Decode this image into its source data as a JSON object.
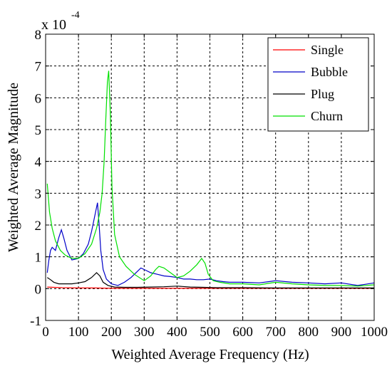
{
  "chart_data": {
    "type": "line",
    "title": "",
    "xlabel": "Weighted Average Frequency (Hz)",
    "ylabel": "Weighted Average Magnitude",
    "y_multiplier_base": "x 10",
    "y_multiplier_exponent": "-4",
    "xlim": [
      0,
      1000
    ],
    "ylim": [
      -1,
      8
    ],
    "x_ticks": [
      0,
      100,
      200,
      300,
      400,
      500,
      600,
      700,
      800,
      900,
      1000
    ],
    "x_tick_labels": [
      "0",
      "100",
      "200",
      "300",
      "400",
      "500",
      "600",
      "700",
      "800",
      "900",
      "1000"
    ],
    "y_ticks": [
      -1,
      0,
      1,
      2,
      3,
      4,
      5,
      6,
      7,
      8
    ],
    "y_tick_labels": [
      "-1",
      "0",
      "1",
      "2",
      "3",
      "4",
      "5",
      "6",
      "7",
      "8"
    ],
    "grid": true,
    "legend_position": "top-right",
    "series": [
      {
        "name": "Single",
        "color": "#ff0000",
        "x": [
          5,
          50,
          100,
          150,
          200,
          300,
          400,
          500,
          600,
          700,
          800,
          900,
          1000
        ],
        "y": [
          0.05,
          0.03,
          0.02,
          0.02,
          0.01,
          0.01,
          0.01,
          0.01,
          0.01,
          0.01,
          0.01,
          0.01,
          0.01
        ]
      },
      {
        "name": "Bubble",
        "color": "#0000c8",
        "x": [
          5,
          10,
          15,
          20,
          30,
          40,
          48,
          55,
          65,
          80,
          100,
          115,
          130,
          140,
          150,
          158,
          163,
          168,
          175,
          185,
          200,
          220,
          240,
          260,
          280,
          290,
          300,
          320,
          340,
          360,
          380,
          400,
          420,
          440,
          460,
          480,
          500,
          520,
          540,
          560,
          580,
          600,
          650,
          700,
          750,
          800,
          850,
          900,
          950,
          1000
        ],
        "y": [
          0.5,
          0.9,
          1.2,
          1.3,
          1.2,
          1.6,
          1.85,
          1.6,
          1.2,
          0.9,
          0.95,
          1.1,
          1.4,
          1.8,
          2.3,
          2.7,
          2.0,
          1.2,
          0.6,
          0.3,
          0.15,
          0.1,
          0.2,
          0.35,
          0.55,
          0.65,
          0.6,
          0.5,
          0.45,
          0.4,
          0.38,
          0.35,
          0.3,
          0.3,
          0.28,
          0.28,
          0.3,
          0.25,
          0.22,
          0.2,
          0.2,
          0.2,
          0.18,
          0.25,
          0.2,
          0.18,
          0.15,
          0.18,
          0.1,
          0.18
        ]
      },
      {
        "name": "Plug",
        "color": "#000000",
        "x": [
          5,
          15,
          25,
          40,
          60,
          80,
          100,
          120,
          140,
          155,
          165,
          175,
          190,
          210,
          240,
          280,
          320,
          360,
          400,
          440,
          480,
          520,
          560,
          600,
          700,
          800,
          900,
          1000
        ],
        "y": [
          0.35,
          0.28,
          0.2,
          0.15,
          0.15,
          0.15,
          0.18,
          0.22,
          0.35,
          0.5,
          0.4,
          0.2,
          0.1,
          0.05,
          0.04,
          0.04,
          0.05,
          0.06,
          0.08,
          0.05,
          0.04,
          0.03,
          0.03,
          0.03,
          0.02,
          0.02,
          0.02,
          0.02
        ]
      },
      {
        "name": "Churn",
        "color": "#00e000",
        "x": [
          5,
          12,
          20,
          30,
          45,
          60,
          80,
          100,
          120,
          140,
          155,
          165,
          172,
          178,
          183,
          188,
          192,
          197,
          202,
          210,
          225,
          245,
          270,
          300,
          320,
          335,
          345,
          360,
          380,
          400,
          420,
          440,
          460,
          475,
          485,
          495,
          510,
          530,
          560,
          600,
          650,
          700,
          750,
          800,
          850,
          900,
          950,
          1000
        ],
        "y": [
          3.3,
          2.4,
          1.9,
          1.5,
          1.2,
          1.05,
          0.95,
          0.95,
          1.1,
          1.4,
          1.9,
          2.4,
          3.0,
          4.0,
          5.3,
          6.5,
          6.85,
          5.5,
          3.2,
          1.7,
          1.0,
          0.7,
          0.45,
          0.25,
          0.4,
          0.6,
          0.7,
          0.65,
          0.5,
          0.35,
          0.4,
          0.55,
          0.75,
          0.95,
          0.8,
          0.45,
          0.25,
          0.2,
          0.15,
          0.15,
          0.12,
          0.2,
          0.15,
          0.12,
          0.1,
          0.1,
          0.08,
          0.12
        ]
      }
    ]
  }
}
